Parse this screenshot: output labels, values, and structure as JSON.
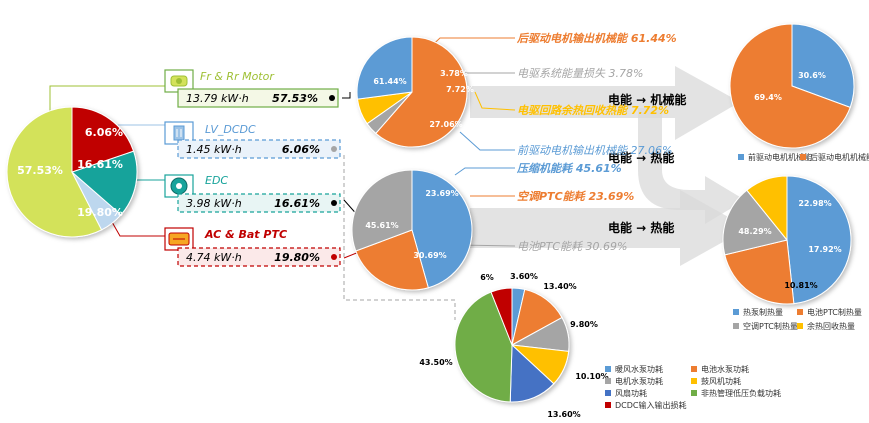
{
  "chart_data": [
    {
      "type": "pie",
      "id": "total",
      "categories": [
        "Fr & Rr Motor",
        "LV_DCDC",
        "EDC",
        "AC & Bat PTC"
      ],
      "values": [
        57.53,
        6.06,
        16.61,
        19.8
      ],
      "labels": [
        "57.53%",
        "6.06%",
        "16.61%",
        "19.80%"
      ],
      "colors": [
        "#d3e25a",
        "#bdd7ee",
        "#18a39b",
        "#c00000"
      ],
      "energy_labels": [
        "13.79 kW·h",
        "1.45 kW·h",
        "3.98 kW·h",
        "4.74 kW·h"
      ],
      "percent_labels": [
        "57.53%",
        "6.06%",
        "16.61%",
        "19.80%"
      ],
      "box_colors": [
        "#70ad47",
        "#5b9bd5",
        "#18a39b",
        "#c00000"
      ],
      "title_colors": [
        "#9fc035",
        "#5b9bd5",
        "#18a39b",
        "#c00000"
      ]
    },
    {
      "type": "pie",
      "id": "motor",
      "categories": [
        "后驱动电机输出机械能",
        "电驱系统能量损失",
        "电驱回路余热回收热能",
        "前驱动电机输出机械能"
      ],
      "values": [
        61.44,
        3.78,
        7.72,
        27.06
      ],
      "labels": [
        "61.44%",
        "3.78%",
        "7.72%",
        "27.06%"
      ],
      "colors": [
        "#ed7d31",
        "#a5a5a5",
        "#ffc000",
        "#5b9bd5"
      ],
      "annotations": [
        "后驱动电机输出机械能  61.44%",
        "电驱系统能量损失  3.78%",
        "电驱回路余热回收热能  7.72%",
        "前驱动电机输出机械能 27.06%"
      ]
    },
    {
      "type": "pie",
      "id": "hvac",
      "categories": [
        "压缩机能耗",
        "空调PTC能耗",
        "电池PTC能耗"
      ],
      "values": [
        45.61,
        23.69,
        30.69
      ],
      "labels": [
        "45.61%",
        "23.69%",
        "30.69%"
      ],
      "colors": [
        "#5b9bd5",
        "#ed7d31",
        "#a5a5a5"
      ],
      "annotations": [
        "压缩机能耗 45.61%",
        "空调PTC能耗 23.69%",
        "电池PTC能耗 30.69%"
      ]
    },
    {
      "type": "pie",
      "id": "mechanical",
      "categories": [
        "前驱动电机机械能",
        "后驱动电机机械能"
      ],
      "values": [
        30.6,
        69.4
      ],
      "labels": [
        "30.6%",
        "69.4%"
      ],
      "colors": [
        "#5b9bd5",
        "#ed7d31"
      ],
      "legend": [
        "前驱动电机机械能",
        "后驱动电机机械能"
      ]
    },
    {
      "type": "pie",
      "id": "heat",
      "categories": [
        "热泵制热量",
        "电池PTC制热量",
        "空调PTC制热量",
        "余热回收热量"
      ],
      "values": [
        48.29,
        22.98,
        17.92,
        10.81
      ],
      "labels": [
        "48.29%",
        "22.98%",
        "17.92%",
        "10.81%"
      ],
      "colors": [
        "#5b9bd5",
        "#ed7d31",
        "#a5a5a5",
        "#ffc000"
      ],
      "legend": [
        "热泵制热量",
        "电池PTC制热量",
        "空调PTC制热量",
        "余热回收热量"
      ]
    },
    {
      "type": "pie",
      "id": "lv",
      "categories": [
        "暖风水泵功耗",
        "电池水泵功耗",
        "电机水泵功耗",
        "鼓风机功耗",
        "风扇功耗",
        "非热管理低压负载功耗",
        "DCDC输入输出损耗"
      ],
      "values": [
        3.6,
        13.4,
        9.8,
        10.1,
        13.6,
        43.5,
        6.0
      ],
      "labels": [
        "3.60%",
        "13.40%",
        "9.80%",
        "10.10%",
        "13.60%",
        "43.50%",
        "6%"
      ],
      "colors": [
        "#5b9bd5",
        "#ed7d31",
        "#a5a5a5",
        "#ffc000",
        "#4472c4",
        "#70ad47",
        "#c00000"
      ],
      "legend": [
        "暖风水泵功耗",
        "电池水泵功耗",
        "电机水泵功耗",
        "鼓风机功耗",
        "风扇功耗",
        "非热管理低压负载功耗",
        "DCDC输入输出损耗"
      ]
    }
  ],
  "arrows": {
    "mech_label": "电能 → 机械能",
    "heat_label_1": "电能 → 热能",
    "heat_label_2": "电能 → 热能"
  },
  "icons": [
    "motor-icon",
    "dcdc-icon",
    "compressor-icon",
    "heater-icon"
  ]
}
